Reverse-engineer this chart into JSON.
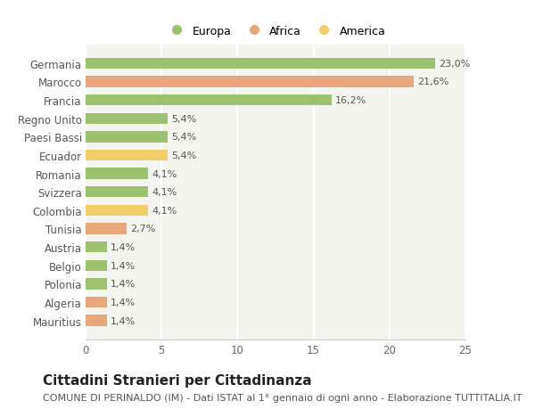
{
  "categories": [
    "Mauritius",
    "Algeria",
    "Polonia",
    "Belgio",
    "Austria",
    "Tunisia",
    "Colombia",
    "Svizzera",
    "Romania",
    "Ecuador",
    "Paesi Bassi",
    "Regno Unito",
    "Francia",
    "Marocco",
    "Germania"
  ],
  "values": [
    1.4,
    1.4,
    1.4,
    1.4,
    1.4,
    2.7,
    4.1,
    4.1,
    4.1,
    5.4,
    5.4,
    5.4,
    16.2,
    21.6,
    23.0
  ],
  "colors": [
    "#E8A87C",
    "#E8A87C",
    "#9DC16E",
    "#9DC16E",
    "#9DC16E",
    "#E8A87C",
    "#F2CE6B",
    "#9DC16E",
    "#9DC16E",
    "#F2CE6B",
    "#9DC16E",
    "#9DC16E",
    "#9DC16E",
    "#E8A87C",
    "#9DC16E"
  ],
  "labels": [
    "1,4%",
    "1,4%",
    "1,4%",
    "1,4%",
    "1,4%",
    "2,7%",
    "4,1%",
    "4,1%",
    "4,1%",
    "5,4%",
    "5,4%",
    "5,4%",
    "16,2%",
    "21,6%",
    "23,0%"
  ],
  "legend_labels": [
    "Europa",
    "Africa",
    "America"
  ],
  "legend_colors": [
    "#9DC16E",
    "#E8A87C",
    "#F2CE6B"
  ],
  "title": "Cittadini Stranieri per Cittadinanza",
  "subtitle": "COMUNE DI PERINALDO (IM) - Dati ISTAT al 1° gennaio di ogni anno - Elaborazione TUTTITALIA.IT",
  "xlim": [
    0,
    25
  ],
  "xticks": [
    0,
    5,
    10,
    15,
    20,
    25
  ],
  "background_color": "#ffffff",
  "plot_bg_color": "#f5f5f0",
  "grid_color": "#ffffff",
  "title_fontsize": 11,
  "subtitle_fontsize": 8,
  "label_fontsize": 8,
  "tick_fontsize": 8.5,
  "legend_fontsize": 9
}
